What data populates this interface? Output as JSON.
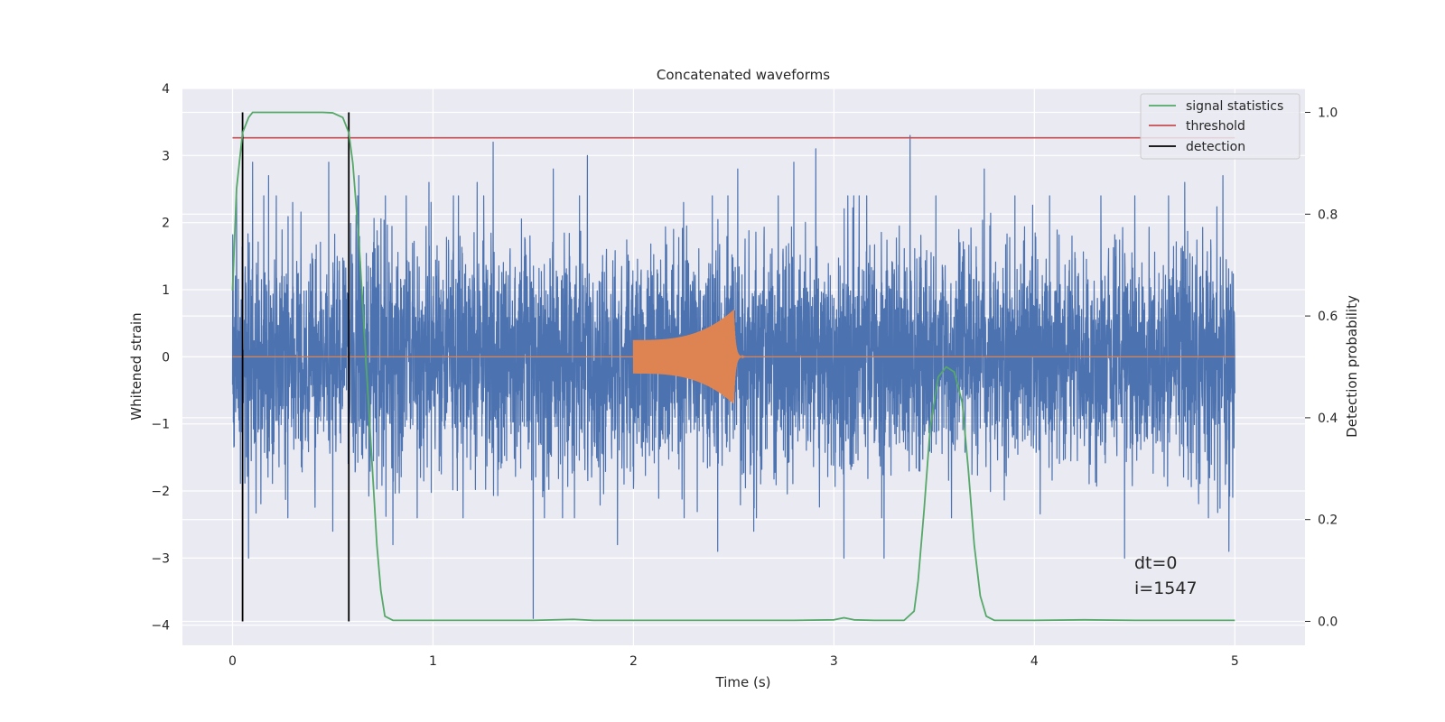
{
  "colors": {
    "background": "#ffffff",
    "axes_face": "#eaeaf2",
    "grid": "#ffffff",
    "strain": "#4c72b0",
    "template": "#dd8452",
    "signal_statistics": "#55a868",
    "threshold": "#c44e52",
    "detection": "#000000"
  },
  "chart_data": {
    "type": "line",
    "title": "Concatenated waveforms",
    "xlabel": "Time (s)",
    "ylabel": "Whitened strain",
    "y2label": "Detection probability",
    "xlim": [
      -0.25,
      5.35
    ],
    "ylim": [
      -4.3,
      4.0
    ],
    "y2lim": [
      -0.047,
      1.047
    ],
    "xticks": [
      "0",
      "1",
      "2",
      "3",
      "4",
      "5"
    ],
    "yticks": [
      "4",
      "3",
      "2",
      "1",
      "0",
      "−1",
      "−2",
      "−3",
      "−4"
    ],
    "y2ticks": [
      "1.0",
      "0.8",
      "0.6",
      "0.4",
      "0.2",
      "0.0"
    ],
    "grid": true,
    "legend": {
      "placement": "top-right",
      "entries": [
        "signal statistics",
        "threshold",
        "detection"
      ]
    },
    "annotation": [
      "dt=0",
      "i=1547"
    ],
    "series": [
      {
        "name": "signal statistics",
        "axis": "right",
        "x": [
          0,
          0.02,
          0.05,
          0.08,
          0.1,
          0.15,
          0.3,
          0.45,
          0.5,
          0.55,
          0.58,
          0.6,
          0.63,
          0.66,
          0.69,
          0.72,
          0.74,
          0.76,
          0.8,
          1.0,
          1.5,
          1.7,
          1.8,
          2.0,
          2.5,
          2.8,
          3.0,
          3.05,
          3.1,
          3.2,
          3.35,
          3.4,
          3.42,
          3.45,
          3.48,
          3.52,
          3.56,
          3.6,
          3.64,
          3.67,
          3.7,
          3.73,
          3.76,
          3.8,
          4.0,
          4.25,
          4.5,
          5.0
        ],
        "y": [
          0.65,
          0.85,
          0.96,
          0.99,
          1.0,
          1.0,
          1.0,
          1.0,
          0.999,
          0.99,
          0.96,
          0.9,
          0.75,
          0.55,
          0.35,
          0.15,
          0.06,
          0.01,
          0.002,
          0.002,
          0.002,
          0.004,
          0.002,
          0.002,
          0.002,
          0.002,
          0.003,
          0.007,
          0.003,
          0.002,
          0.002,
          0.02,
          0.08,
          0.22,
          0.38,
          0.48,
          0.5,
          0.49,
          0.43,
          0.3,
          0.15,
          0.05,
          0.01,
          0.002,
          0.002,
          0.003,
          0.002,
          0.002
        ]
      },
      {
        "name": "threshold",
        "axis": "right",
        "x": [
          0,
          5.0
        ],
        "y": [
          0.95,
          0.95
        ]
      },
      {
        "name": "detection",
        "axis": "right",
        "segments": [
          {
            "x": 0.05,
            "y": [
              0.0,
              1.0
            ]
          },
          {
            "x": 0.58,
            "y": [
              0.0,
              1.0
            ]
          }
        ]
      }
    ],
    "strain_noise": {
      "axis": "left",
      "x_range": [
        0,
        5.0
      ],
      "typical_amplitude": 1.0,
      "peak_values": [
        {
          "x": 0.02,
          "y": 2.5
        },
        {
          "x": 0.1,
          "y": 2.9
        },
        {
          "x": 0.18,
          "y": 2.7
        },
        {
          "x": 0.3,
          "y": 2.3
        },
        {
          "x": 0.48,
          "y": 2.9
        },
        {
          "x": 0.63,
          "y": 2.7
        },
        {
          "x": 0.98,
          "y": 2.6
        },
        {
          "x": 1.22,
          "y": 2.6
        },
        {
          "x": 1.3,
          "y": 3.2
        },
        {
          "x": 1.6,
          "y": 2.8
        },
        {
          "x": 1.77,
          "y": 3.0
        },
        {
          "x": 2.25,
          "y": 2.3
        },
        {
          "x": 2.52,
          "y": 2.8
        },
        {
          "x": 2.8,
          "y": 2.9
        },
        {
          "x": 2.91,
          "y": 3.1
        },
        {
          "x": 3.38,
          "y": 3.3
        },
        {
          "x": 3.75,
          "y": 2.8
        },
        {
          "x": 4.45,
          "y": 2.8
        },
        {
          "x": 4.75,
          "y": 2.6
        },
        {
          "x": 4.94,
          "y": 2.7
        },
        {
          "x": 0.08,
          "y": -3.0
        },
        {
          "x": 0.5,
          "y": -2.6
        },
        {
          "x": 0.8,
          "y": -2.8
        },
        {
          "x": 1.5,
          "y": -3.9
        },
        {
          "x": 1.92,
          "y": -2.8
        },
        {
          "x": 2.42,
          "y": -2.9
        },
        {
          "x": 2.6,
          "y": -2.6
        },
        {
          "x": 3.05,
          "y": -3.0
        },
        {
          "x": 3.25,
          "y": -3.0
        },
        {
          "x": 4.45,
          "y": -3.0
        },
        {
          "x": 4.97,
          "y": -2.9
        }
      ]
    },
    "template_waveform": {
      "axis": "left",
      "x_range": [
        2.0,
        2.52
      ],
      "start_amplitude": 0.25,
      "peak_amplitude": 0.7,
      "merger_time": 2.5,
      "ringdown_end": 2.6
    }
  }
}
